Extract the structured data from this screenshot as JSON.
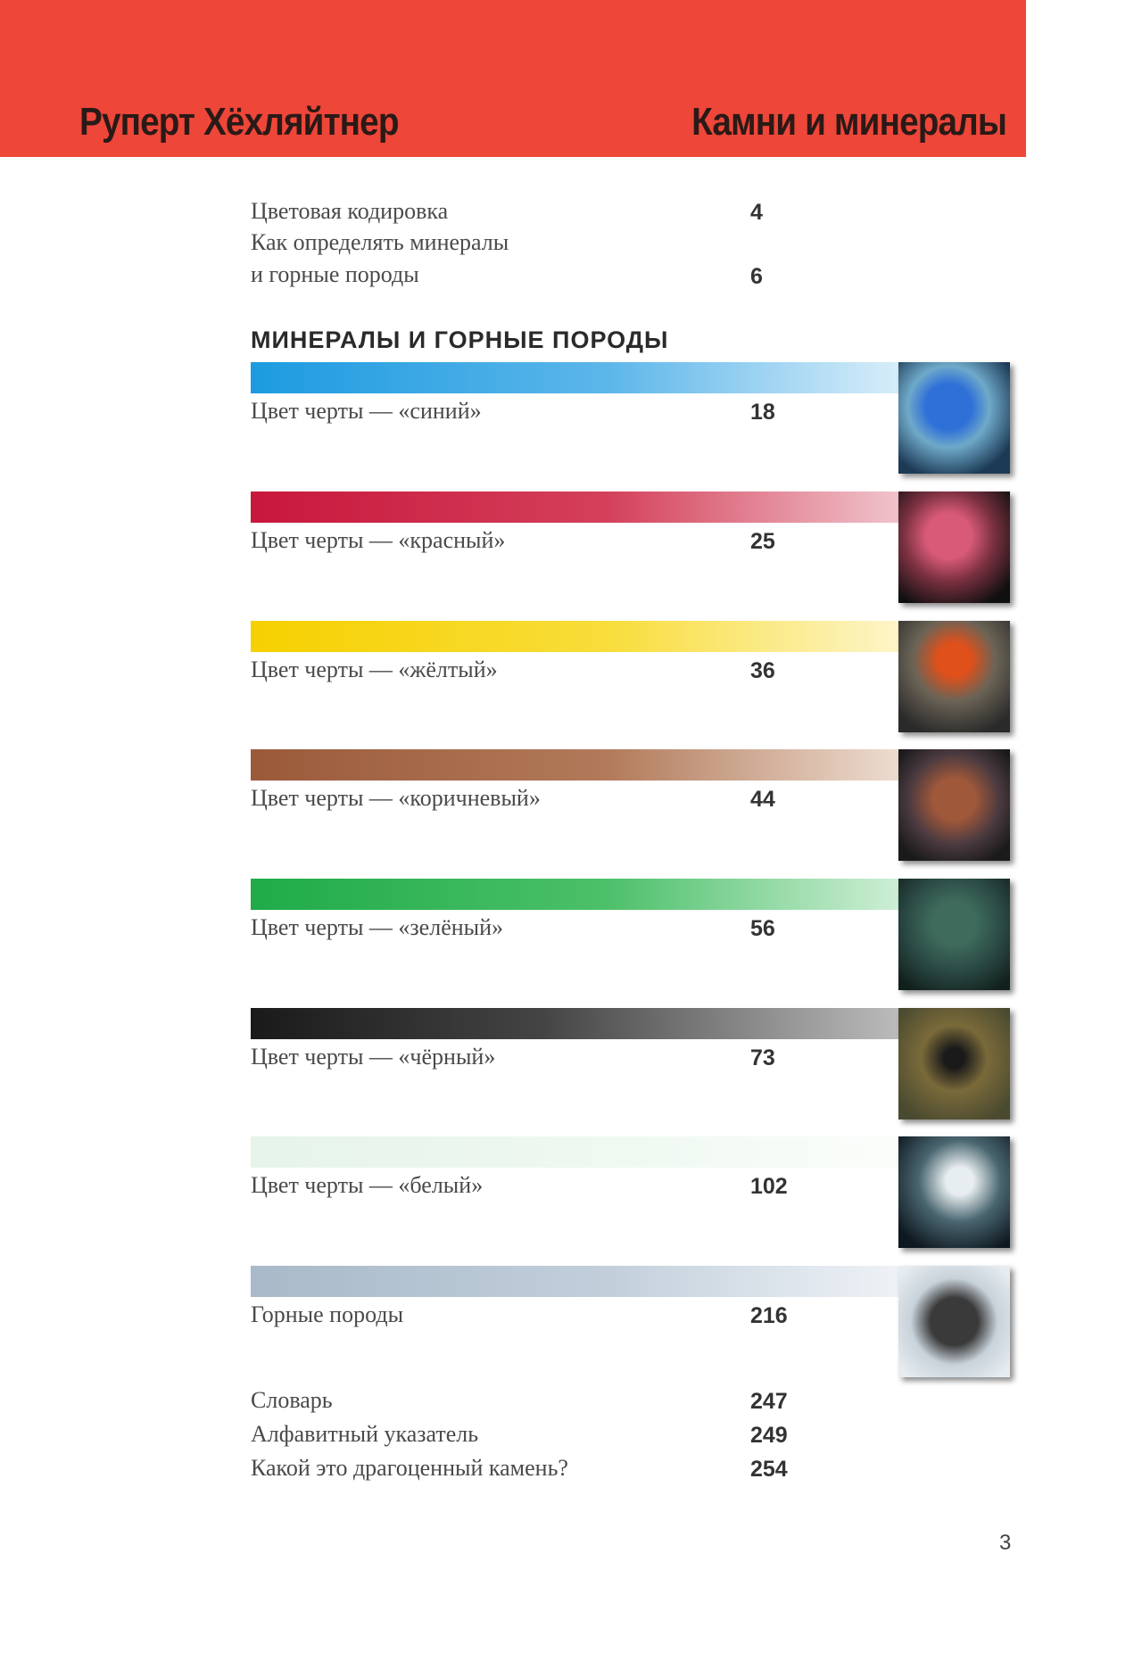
{
  "header": {
    "author": "Руперт Хёхляйтнер",
    "title": "Камни и минералы"
  },
  "intro": [
    {
      "label": "Цветовая кодировка",
      "page": 4
    },
    {
      "label": "Как определять минералы",
      "page": null
    },
    {
      "label": "и горные породы",
      "page": 6
    }
  ],
  "section_heading": "МИНЕРАЛЫ И ГОРНЫЕ ПОРОДЫ",
  "sections": [
    {
      "label": "Цвет черты — «синий»",
      "page": 18
    },
    {
      "label": "Цвет черты — «красный»",
      "page": 25
    },
    {
      "label": "Цвет черты — «жёлтый»",
      "page": 36
    },
    {
      "label": "Цвет черты — «коричневый»",
      "page": 44
    },
    {
      "label": "Цвет черты — «зелёный»",
      "page": 56
    },
    {
      "label": "Цвет черты — «чёрный»",
      "page": 73
    },
    {
      "label": "Цвет черты — «белый»",
      "page": 102
    },
    {
      "label": "Горные породы",
      "page": 216
    }
  ],
  "appendix": [
    {
      "label": "Словарь",
      "page": 247
    },
    {
      "label": "Алфавитный указатель",
      "page": 249
    },
    {
      "label": "Какой это драгоценный камень?",
      "page": 254
    }
  ],
  "page_number": 3
}
